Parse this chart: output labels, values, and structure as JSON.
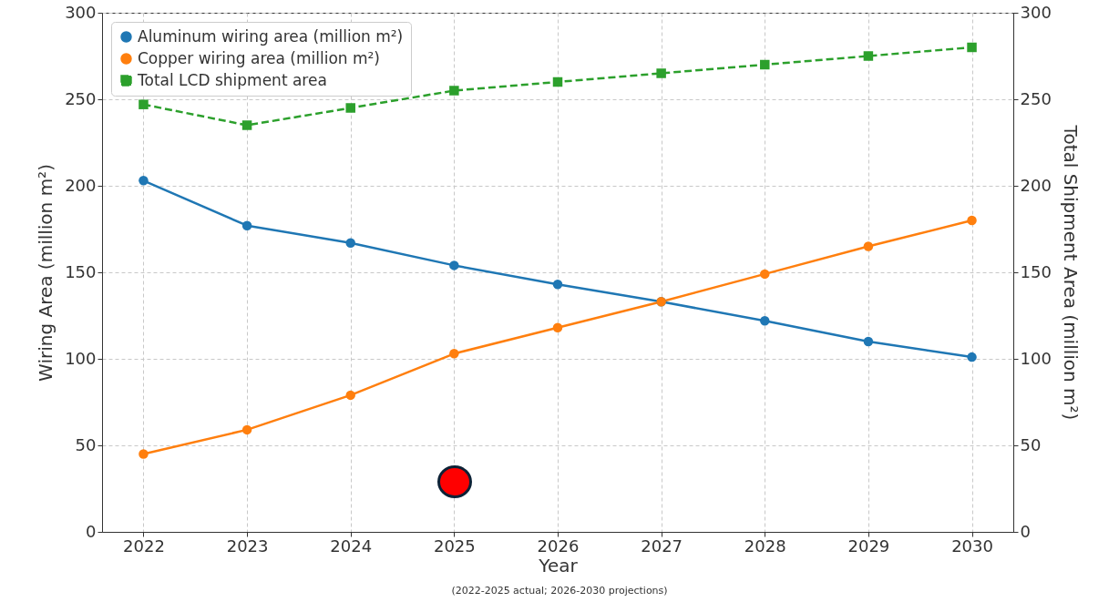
{
  "chart_data": {
    "type": "line",
    "xlabel": "Year",
    "ylabel": "Wiring Area (million m²)",
    "y2label": "Total Shipment Area (million m²)",
    "x": [
      2022,
      2023,
      2024,
      2025,
      2026,
      2027,
      2028,
      2029,
      2030
    ],
    "series": [
      {
        "name": "Aluminum wiring area (million m²)",
        "color": "#1f77b4",
        "marker": "circle",
        "line_style": "solid",
        "values": [
          203,
          177,
          167,
          154,
          143,
          133,
          122,
          110,
          101
        ]
      },
      {
        "name": "Copper wiring area (million m²)",
        "color": "#ff7f0e",
        "marker": "circle",
        "line_style": "solid",
        "values": [
          45,
          59,
          79,
          103,
          118,
          133,
          149,
          165,
          180
        ]
      },
      {
        "name": "Total LCD shipment area",
        "color": "#2ca02c",
        "marker": "square",
        "line_style": "dashed",
        "axis": "y2",
        "values": [
          247,
          235,
          245,
          255,
          260,
          265,
          270,
          275,
          280
        ]
      }
    ],
    "xlim": [
      2021.6,
      2030.4
    ],
    "xticks": [
      2022,
      2023,
      2024,
      2025,
      2026,
      2027,
      2028,
      2029,
      2030
    ],
    "ylim": [
      0,
      300
    ],
    "yticks": [
      0,
      50,
      100,
      150,
      200,
      250,
      300
    ],
    "y2lim": [
      0,
      300
    ],
    "y2ticks": [
      0,
      50,
      100,
      150,
      200,
      250,
      300
    ],
    "grid": true,
    "legend": "top left",
    "annotations": [
      "(2022-2025 actual; 2026-2030 projections)"
    ]
  }
}
